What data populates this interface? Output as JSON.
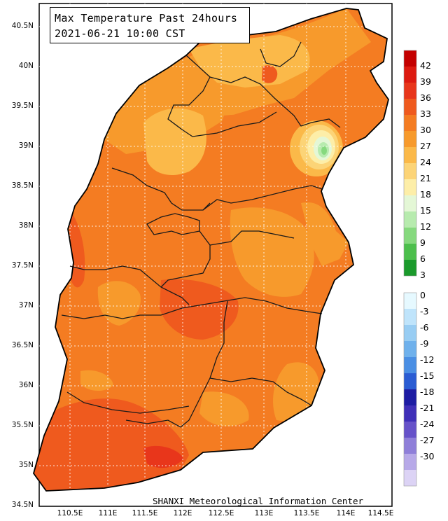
{
  "title": {
    "line1": "Max Temperature Past 24hours",
    "line2": "2021-06-21 10:00 CST"
  },
  "footer": "SHANXI Meteorological Information Center",
  "y_axis": {
    "ticks": [
      "40.5N",
      "40N",
      "39.5N",
      "39N",
      "38.5N",
      "38N",
      "37.5N",
      "37N",
      "36.5N",
      "36N",
      "35.5N",
      "35N",
      "34.5N"
    ]
  },
  "x_axis": {
    "ticks": [
      "110.5E",
      "111E",
      "111.5E",
      "112E",
      "112.5E",
      "113E",
      "113.5E",
      "114E",
      "114.5E"
    ]
  },
  "legend": {
    "upper": [
      {
        "label": "42",
        "color": "#c40000"
      },
      {
        "label": "39",
        "color": "#dd1a10"
      },
      {
        "label": "36",
        "color": "#e8361b"
      },
      {
        "label": "33",
        "color": "#ef5a1e"
      },
      {
        "label": "30",
        "color": "#f47c22"
      },
      {
        "label": "27",
        "color": "#f79a2c"
      },
      {
        "label": "24",
        "color": "#fbb949"
      },
      {
        "label": "21",
        "color": "#fcd477"
      },
      {
        "label": "18",
        "color": "#fdeea8"
      },
      {
        "label": "15",
        "color": "#e4f7d6"
      },
      {
        "label": "12",
        "color": "#b7ebae"
      },
      {
        "label": "9",
        "color": "#86d97e"
      },
      {
        "label": "6",
        "color": "#4cbf4c"
      },
      {
        "label": "3",
        "color": "#1b9a2c"
      }
    ],
    "lower": [
      {
        "label": "0",
        "color": "#e6f9ff"
      },
      {
        "label": "-3",
        "color": "#bfe4fb"
      },
      {
        "label": "-6",
        "color": "#98cdf3"
      },
      {
        "label": "-9",
        "color": "#6fb1ec"
      },
      {
        "label": "-12",
        "color": "#4a8fe4"
      },
      {
        "label": "-15",
        "color": "#2a5cd3"
      },
      {
        "label": "-18",
        "color": "#1d1ca3"
      },
      {
        "label": "-21",
        "color": "#3f2fb8"
      },
      {
        "label": "-24",
        "color": "#6652c9"
      },
      {
        "label": "-27",
        "color": "#8f7fd9"
      },
      {
        "label": "-30",
        "color": "#b7a9e8"
      },
      {
        "label": "",
        "color": "#dcd3f5"
      }
    ]
  },
  "map_colors": {
    "t33": "#ef5a1e",
    "t30": "#f47c22",
    "t27": "#f79a2c",
    "t24": "#fbb949",
    "t21": "#fcd477",
    "t36": "#e8361b",
    "t18": "#fdeea8",
    "t15": "#e4f7d6",
    "t12": "#b7ebae",
    "t9": "#86d97e"
  }
}
